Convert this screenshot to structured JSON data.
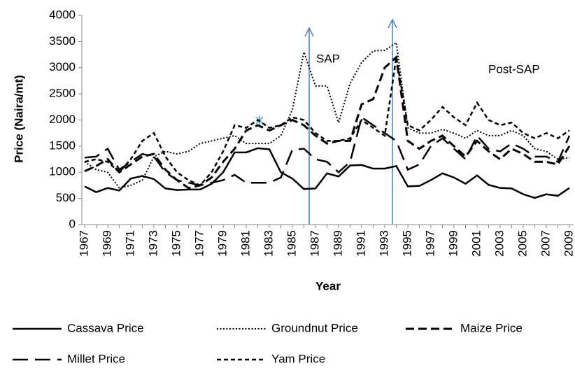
{
  "chart_data": {
    "type": "line",
    "x_label": "Year",
    "y_label": "Price (Naira/mt)",
    "annotations": [
      "SAP",
      "Post-SAP"
    ],
    "categories": [
      "1967",
      null,
      "1969",
      null,
      "1971",
      null,
      "1973",
      null,
      "1975",
      null,
      "1977",
      null,
      "1979",
      null,
      "1981",
      null,
      "1983",
      null,
      "1985",
      null,
      "1987",
      null,
      "1989",
      null,
      "1991",
      null,
      "1993",
      null,
      "1995",
      null,
      "1997",
      null,
      "1999",
      null,
      "2001",
      null,
      "2003",
      null,
      "2005",
      null,
      "2007",
      null,
      "2009"
    ],
    "ylim": [
      0,
      4000
    ],
    "yticks": [
      0,
      500,
      1000,
      1500,
      2000,
      2500,
      3000,
      3500,
      4000
    ],
    "grid": false,
    "legend": "bottom",
    "series": [
      {
        "name": "Cassava Price",
        "color": "#000000",
        "style": "solid",
        "values": [
          730,
          620,
          700,
          650,
          880,
          930,
          870,
          690,
          660,
          670,
          670,
          780,
          1000,
          1380,
          1380,
          1460,
          1440,
          1000,
          880,
          680,
          690,
          980,
          920,
          1130,
          1140,
          1070,
          1070,
          1120,
          730,
          740,
          850,
          980,
          900,
          780,
          940,
          760,
          700,
          690,
          580,
          510,
          580,
          550,
          700
        ]
      },
      {
        "name": "Groundnut Price",
        "color": "#000000",
        "style": "dotted",
        "values": [
          1200,
          1050,
          1000,
          700,
          750,
          850,
          1300,
          1400,
          1350,
          1400,
          1550,
          1600,
          1650,
          1700,
          1550,
          1550,
          1550,
          1700,
          2200,
          3300,
          2650,
          2650,
          1950,
          2700,
          3100,
          3320,
          3330,
          3480,
          1850,
          1750,
          1750,
          1820,
          1750,
          1650,
          1800,
          1700,
          1700,
          1800,
          1700,
          1450,
          1400,
          1250,
          1280
        ]
      },
      {
        "name": "Maize Price",
        "color": "#000000",
        "style": "dashed",
        "values": [
          1020,
          1120,
          1250,
          1000,
          1150,
          1300,
          1350,
          1050,
          850,
          700,
          750,
          900,
          1200,
          1450,
          1800,
          1900,
          1800,
          1900,
          2000,
          1900,
          1700,
          1550,
          1600,
          1600,
          2300,
          2400,
          3000,
          3200,
          1600,
          1450,
          1600,
          1700,
          1500,
          1300,
          1600,
          1400,
          1250,
          1450,
          1350,
          1200,
          1200,
          1150,
          1500
        ]
      },
      {
        "name": "Millet Price",
        "color": "#000000",
        "style": "long-dash",
        "values": [
          1280,
          1300,
          1450,
          1050,
          1200,
          1350,
          1300,
          1000,
          850,
          800,
          750,
          800,
          850,
          950,
          800,
          800,
          800,
          900,
          1430,
          1450,
          1250,
          1200,
          1000,
          1200,
          2050,
          1900,
          1750,
          1600,
          1050,
          1150,
          1500,
          1650,
          1450,
          1250,
          1700,
          1450,
          1400,
          1550,
          1450,
          1300,
          1300,
          1200,
          1700
        ]
      },
      {
        "name": "Yam Price",
        "color": "#000000",
        "style": "short-dash",
        "values": [
          1200,
          1250,
          1200,
          1000,
          1250,
          1600,
          1750,
          1300,
          1000,
          850,
          750,
          1000,
          1400,
          1900,
          1850,
          2000,
          1850,
          1900,
          2050,
          2000,
          1750,
          1600,
          1600,
          1650,
          2000,
          1850,
          1700,
          3200,
          1900,
          1800,
          2000,
          2250,
          2050,
          1900,
          2330,
          2000,
          1900,
          1950,
          1750,
          1650,
          1750,
          1650,
          1800
        ]
      }
    ]
  }
}
